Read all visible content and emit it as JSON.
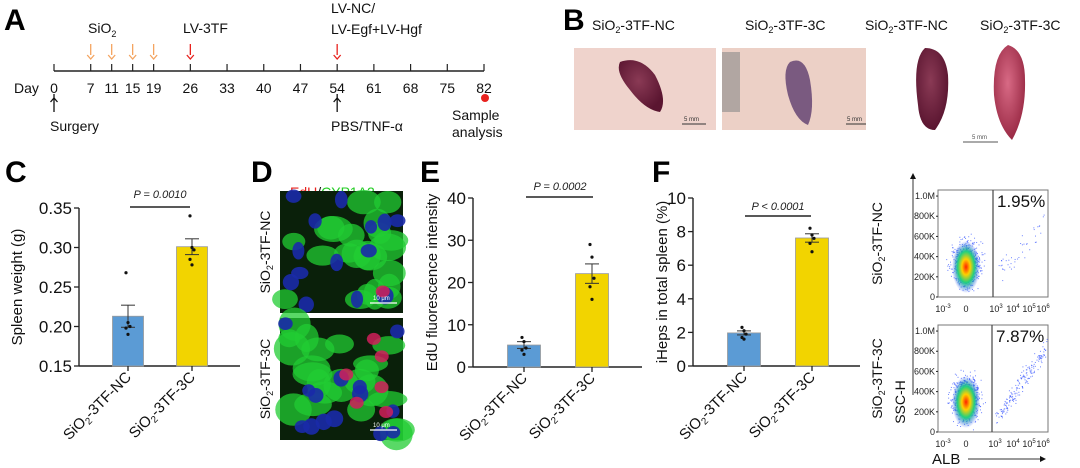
{
  "panels": {
    "a": "A",
    "b": "B",
    "c": "C",
    "d": "D",
    "e": "E",
    "f": "F"
  },
  "timeline": {
    "day_label": "Day",
    "days": [
      0,
      7,
      11,
      15,
      19,
      26,
      33,
      40,
      47,
      54,
      61,
      68,
      75,
      82
    ],
    "sio2_label": "SiO",
    "sio2_sub": "2",
    "sio2_days": [
      7,
      11,
      15,
      19
    ],
    "lv3tf_label": "LV-3TF",
    "lv3tf_day": 26,
    "lv_nc_label_1": "LV-NC/",
    "lv_nc_label_2": "LV-Egf+LV-Hgf",
    "lv_nc_day": 54,
    "surgery_label": "Surgery",
    "pbs_label": "PBS/TNF-α",
    "sample_label_1": "Sample",
    "sample_label_2": "analysis",
    "colors": {
      "sio2_arrow": "#f4a460",
      "lv_arrow": "#e8221e",
      "sample_dot": "#e8221e"
    }
  },
  "panel_b": {
    "labels": [
      "-3TF-NC",
      "-3TF-3C",
      "-3TF-NC",
      "-3TF-3C"
    ],
    "prefix": "SiO",
    "sub": "2",
    "scale_bar": "5 mm"
  },
  "panel_d": {
    "title_edu": "EdU",
    "title_sep": "/",
    "title_cyp": "CYP1A2",
    "row_labels": [
      "-3TF-NC",
      "-3TF-3C"
    ],
    "scale_bar": "10 μm",
    "colors": {
      "edu": "#e8221e",
      "cyp": "#22dd22"
    }
  },
  "group_prefix": "SiO",
  "group_sub": "2",
  "chart_data": [
    {
      "type": "bar",
      "panel": "C",
      "categories": [
        "-3TF-NC",
        "-3TF-3C"
      ],
      "values": [
        0.213,
        0.301
      ],
      "sem": [
        0.014,
        0.01
      ],
      "points": [
        [
          0.268,
          0.205,
          0.2,
          0.198,
          0.19
        ],
        [
          0.34,
          0.3,
          0.297,
          0.285,
          0.278
        ]
      ],
      "ylabel": "Spleen weight (g)",
      "ylim": [
        0.15,
        0.35
      ],
      "yticks": [
        "0.15",
        "0.20",
        "0.25",
        "0.30",
        "0.35"
      ],
      "pvalue": "P = 0.0010",
      "colors": [
        "#5b9bd5",
        "#f2d400"
      ]
    },
    {
      "type": "bar",
      "panel": "E",
      "categories": [
        "-3TF-NC",
        "-3TF-3C"
      ],
      "values": [
        5.2,
        22.1
      ],
      "sem": [
        0.8,
        2.3
      ],
      "points": [
        [
          7.0,
          6.0,
          4.5,
          4.0,
          3.0
        ],
        [
          29.0,
          26.0,
          21.0,
          19.0,
          16.0
        ]
      ],
      "ylabel": "EdU fluorescence intensity",
      "ylim": [
        0,
        40
      ],
      "yticks": [
        "0",
        "10",
        "20",
        "30",
        "40"
      ],
      "pvalue": "P = 0.0002",
      "colors": [
        "#5b9bd5",
        "#f2d400"
      ]
    },
    {
      "type": "bar",
      "panel": "F",
      "categories": [
        "-3TF-NC",
        "-3TF-3C"
      ],
      "values": [
        1.97,
        7.62
      ],
      "sem": [
        0.12,
        0.25
      ],
      "points": [
        [
          2.3,
          2.1,
          1.9,
          1.7,
          1.6
        ],
        [
          8.2,
          7.8,
          7.6,
          7.3,
          6.8
        ]
      ],
      "ylabel": "iHeps in total spleen (%)",
      "ylim": [
        0,
        10
      ],
      "yticks": [
        "0",
        "2",
        "4",
        "6",
        "8",
        "10"
      ],
      "pvalue": "P < 0.0001",
      "colors": [
        "#5b9bd5",
        "#f2d400"
      ]
    },
    {
      "type": "scatter",
      "panel": "F-flow",
      "plots": [
        {
          "row_label": "-3TF-NC",
          "gate_percent": "1.95%"
        },
        {
          "row_label": "-3TF-3C",
          "gate_percent": "7.87%"
        }
      ],
      "yticks": [
        "0",
        "200K",
        "400K",
        "600K",
        "800K",
        "1.0M"
      ],
      "xticks": [
        "10",
        "0",
        "10",
        "10",
        "10",
        "10"
      ],
      "xtick_exp": [
        "-3",
        "",
        "3",
        "4",
        "5",
        "6"
      ],
      "xlabel": "ALB",
      "ylabel": "SSC-H"
    }
  ]
}
